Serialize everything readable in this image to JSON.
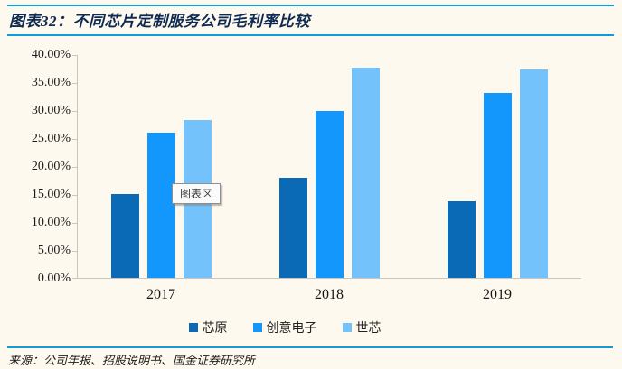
{
  "header": {
    "title": "图表32：不同芯片定制服务公司毛利率比较"
  },
  "tooltip": {
    "label": "图表区"
  },
  "footer": {
    "source": "来源：公司年报、招股说明书、国金证券研究所"
  },
  "colors": {
    "background": "#FEF9EE",
    "accent_line": "#119BD9",
    "title_text": "#0E2A52",
    "axis_line": "#C9C6C2",
    "series": {
      "芯原": "#0B6AB5",
      "创意电子": "#1497FD",
      "世芯": "#74C2FB"
    }
  },
  "chart_data": {
    "type": "bar",
    "title": "图表32：不同芯片定制服务公司毛利率比较",
    "categories": [
      "2017",
      "2018",
      "2019"
    ],
    "series": [
      {
        "name": "芯原",
        "color": "#0B6AB5",
        "values": [
          15.1,
          18.0,
          13.7
        ]
      },
      {
        "name": "创意电子",
        "color": "#1497FD",
        "values": [
          26.0,
          29.9,
          33.2
        ]
      },
      {
        "name": "世芯",
        "color": "#74C2FB",
        "values": [
          28.4,
          37.8,
          37.4
        ]
      }
    ],
    "xlabel": "",
    "ylabel": "",
    "ylim": [
      0,
      40
    ],
    "ytick_step": 5,
    "yticks": [
      "0.00%",
      "5.00%",
      "10.00%",
      "15.00%",
      "20.00%",
      "25.00%",
      "30.00%",
      "35.00%",
      "40.00%"
    ],
    "grid": false,
    "legend_position": "bottom",
    "unit": "percent"
  }
}
